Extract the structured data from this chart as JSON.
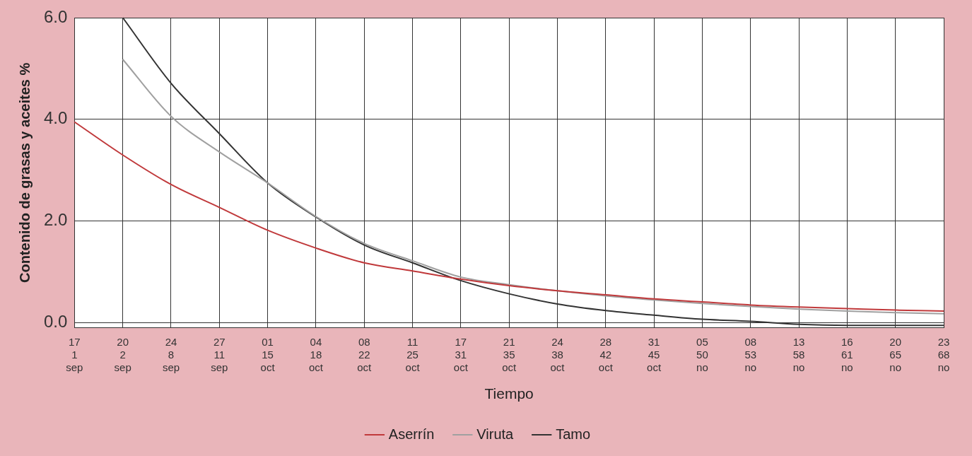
{
  "chart_data": {
    "type": "line",
    "xlabel": "Tiempo",
    "ylabel": "Contenido de grasas y aceites %",
    "categories": [
      "17\n1\nsep",
      "20\n2\nsep",
      "24\n8\nsep",
      "27\n11\nsep",
      "01\n15\noct",
      "04\n18\noct",
      "08\n22\noct",
      "11\n25\noct",
      "17\n31\noct",
      "21\n35\noct",
      "24\n38\noct",
      "28\n42\noct",
      "31\n45\noct",
      "05\n50\nno",
      "08\n53\nno",
      "13\n58\nno",
      "16\n61\nno",
      "20\n65\nno",
      "23\n68\nno"
    ],
    "series": [
      {
        "name": "Aserrín",
        "color": "#c0393b",
        "values": [
          3.95,
          3.3,
          2.72,
          2.27,
          1.82,
          1.47,
          1.18,
          1.02,
          0.86,
          0.73,
          0.63,
          0.55,
          0.47,
          0.41,
          0.35,
          0.31,
          0.28,
          0.25,
          0.23
        ]
      },
      {
        "name": "Viruta",
        "color": "#a0a0a0",
        "values": [
          null,
          5.18,
          4.06,
          3.36,
          2.75,
          2.09,
          1.56,
          1.22,
          0.9,
          0.75,
          0.63,
          0.53,
          0.45,
          0.38,
          0.32,
          0.27,
          0.23,
          0.2,
          0.18
        ]
      },
      {
        "name": "Tamo",
        "color": "#333333",
        "values": [
          null,
          6.0,
          4.71,
          3.72,
          2.75,
          2.08,
          1.53,
          1.18,
          0.83,
          0.57,
          0.37,
          0.24,
          0.15,
          0.07,
          0.03,
          -0.03,
          -0.05,
          -0.05,
          -0.05
        ]
      }
    ],
    "ylim": [
      -0.1,
      6.0
    ],
    "yticks": [
      {
        "value": 0,
        "label": "0.0"
      },
      {
        "value": 2,
        "label": "2.0"
      },
      {
        "value": 4,
        "label": "4.0"
      },
      {
        "value": 6,
        "label": "6.0"
      }
    ],
    "grid": true,
    "legend": "bottom",
    "marker": "none",
    "line_style": "solid"
  }
}
